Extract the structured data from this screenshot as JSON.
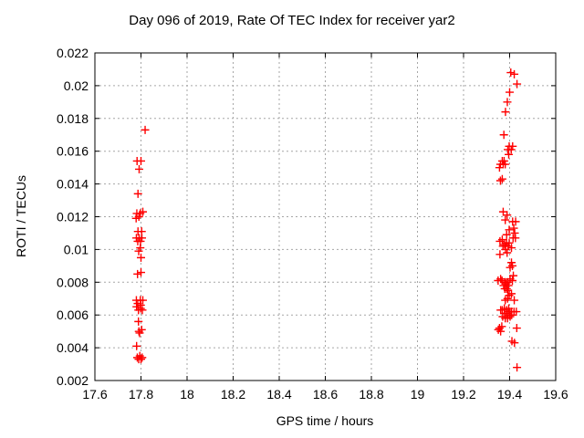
{
  "chart_data": {
    "type": "scatter",
    "title": "Day 096 of 2019, Rate Of TEC Index for receiver yar2",
    "xlabel": "GPS time / hours",
    "ylabel": "ROTI / TECUs",
    "xlim": [
      17.6,
      19.6
    ],
    "ylim": [
      0.002,
      0.022
    ],
    "xtick_labels": [
      "17.6",
      "17.8",
      "18",
      "18.2",
      "18.4",
      "18.6",
      "18.8",
      "19",
      "19.2",
      "19.4",
      "19.6"
    ],
    "ytick_labels": [
      "0.002",
      "0.004",
      "0.006",
      "0.008",
      "0.01",
      "0.012",
      "0.014",
      "0.016",
      "0.018",
      "0.02",
      "0.022"
    ],
    "grid": true,
    "legend": "none",
    "marker": {
      "shape": "plus",
      "size": 9
    },
    "colors": {
      "marker": "#ff0000",
      "grid": "#a6a6a6",
      "axis": "#000000",
      "background": "#ffffff"
    },
    "series": [
      {
        "name": "ROTI",
        "points": [
          [
            17.818,
            0.0173
          ],
          [
            17.783,
            0.0154
          ],
          [
            17.8,
            0.0154
          ],
          [
            17.792,
            0.0149
          ],
          [
            17.787,
            0.0134
          ],
          [
            17.782,
            0.0122
          ],
          [
            17.797,
            0.0122
          ],
          [
            17.808,
            0.0123
          ],
          [
            17.779,
            0.0119
          ],
          [
            17.791,
            0.012
          ],
          [
            17.787,
            0.0111
          ],
          [
            17.803,
            0.0111
          ],
          [
            17.78,
            0.0107
          ],
          [
            17.792,
            0.0107
          ],
          [
            17.804,
            0.0107
          ],
          [
            17.786,
            0.0105
          ],
          [
            17.798,
            0.0105
          ],
          [
            17.797,
            0.0101
          ],
          [
            17.79,
            0.0099
          ],
          [
            17.8,
            0.0095
          ],
          [
            17.785,
            0.0085
          ],
          [
            17.8,
            0.0086
          ],
          [
            17.78,
            0.0069
          ],
          [
            17.797,
            0.0069
          ],
          [
            17.808,
            0.0069
          ],
          [
            17.786,
            0.0067
          ],
          [
            17.799,
            0.0066
          ],
          [
            17.781,
            0.0065
          ],
          [
            17.799,
            0.0064
          ],
          [
            17.789,
            0.0063
          ],
          [
            17.806,
            0.0063
          ],
          [
            17.789,
            0.0056
          ],
          [
            17.791,
            0.005
          ],
          [
            17.803,
            0.0051
          ],
          [
            17.794,
            0.0049
          ],
          [
            17.781,
            0.0041
          ],
          [
            17.784,
            0.0034
          ],
          [
            17.795,
            0.0035
          ],
          [
            17.805,
            0.0034
          ],
          [
            17.79,
            0.0033
          ],
          [
            17.8,
            0.0033
          ],
          [
            19.405,
            0.0208
          ],
          [
            19.42,
            0.0207
          ],
          [
            19.432,
            0.0201
          ],
          [
            19.4,
            0.0196
          ],
          [
            19.39,
            0.019
          ],
          [
            19.382,
            0.0184
          ],
          [
            19.375,
            0.017
          ],
          [
            19.398,
            0.0163
          ],
          [
            19.413,
            0.0163
          ],
          [
            19.392,
            0.0161
          ],
          [
            19.407,
            0.0161
          ],
          [
            19.396,
            0.0158
          ],
          [
            19.368,
            0.0154
          ],
          [
            19.376,
            0.0154
          ],
          [
            19.36,
            0.0152
          ],
          [
            19.372,
            0.0152
          ],
          [
            19.381,
            0.0152
          ],
          [
            19.356,
            0.015
          ],
          [
            19.36,
            0.0142
          ],
          [
            19.368,
            0.0143
          ],
          [
            19.372,
            0.0123
          ],
          [
            19.389,
            0.0121
          ],
          [
            19.381,
            0.0118
          ],
          [
            19.413,
            0.0117
          ],
          [
            19.426,
            0.0117
          ],
          [
            19.418,
            0.0113
          ],
          [
            19.398,
            0.0112
          ],
          [
            19.422,
            0.011
          ],
          [
            19.387,
            0.0109
          ],
          [
            19.415,
            0.0107
          ],
          [
            19.425,
            0.0107
          ],
          [
            19.358,
            0.0105
          ],
          [
            19.368,
            0.0106
          ],
          [
            19.378,
            0.0103
          ],
          [
            19.387,
            0.0104
          ],
          [
            19.398,
            0.0104
          ],
          [
            19.371,
            0.0102
          ],
          [
            19.382,
            0.0102
          ],
          [
            19.394,
            0.0102
          ],
          [
            19.408,
            0.0101
          ],
          [
            19.382,
            0.01
          ],
          [
            19.358,
            0.0097
          ],
          [
            19.389,
            0.0098
          ],
          [
            19.408,
            0.0092
          ],
          [
            19.402,
            0.0089
          ],
          [
            19.412,
            0.009
          ],
          [
            19.416,
            0.0084
          ],
          [
            19.402,
            0.0082
          ],
          [
            19.412,
            0.0081
          ],
          [
            19.35,
            0.0081
          ],
          [
            19.361,
            0.0082
          ],
          [
            19.367,
            0.0081
          ],
          [
            19.38,
            0.008
          ],
          [
            19.391,
            0.008
          ],
          [
            19.374,
            0.0078
          ],
          [
            19.385,
            0.0079
          ],
          [
            19.395,
            0.0078
          ],
          [
            19.387,
            0.0076
          ],
          [
            19.379,
            0.0076
          ],
          [
            19.392,
            0.0075
          ],
          [
            19.398,
            0.0072
          ],
          [
            19.408,
            0.0073
          ],
          [
            19.381,
            0.0069
          ],
          [
            19.391,
            0.007
          ],
          [
            19.42,
            0.0069
          ],
          [
            19.368,
            0.0063
          ],
          [
            19.377,
            0.0064
          ],
          [
            19.361,
            0.0063
          ],
          [
            19.396,
            0.0064
          ],
          [
            19.387,
            0.0063
          ],
          [
            19.398,
            0.0062
          ],
          [
            19.408,
            0.0062
          ],
          [
            19.419,
            0.0062
          ],
          [
            19.429,
            0.0062
          ],
          [
            19.378,
            0.0061
          ],
          [
            19.389,
            0.0061
          ],
          [
            19.399,
            0.006
          ],
          [
            19.409,
            0.006
          ],
          [
            19.37,
            0.0059
          ],
          [
            19.381,
            0.0058
          ],
          [
            19.391,
            0.0058
          ],
          [
            19.402,
            0.0059
          ],
          [
            19.356,
            0.0052
          ],
          [
            19.366,
            0.0053
          ],
          [
            19.351,
            0.0051
          ],
          [
            19.361,
            0.005
          ],
          [
            19.431,
            0.0052
          ],
          [
            19.41,
            0.0044
          ],
          [
            19.421,
            0.0043
          ],
          [
            19.432,
            0.0028
          ]
        ]
      }
    ]
  }
}
